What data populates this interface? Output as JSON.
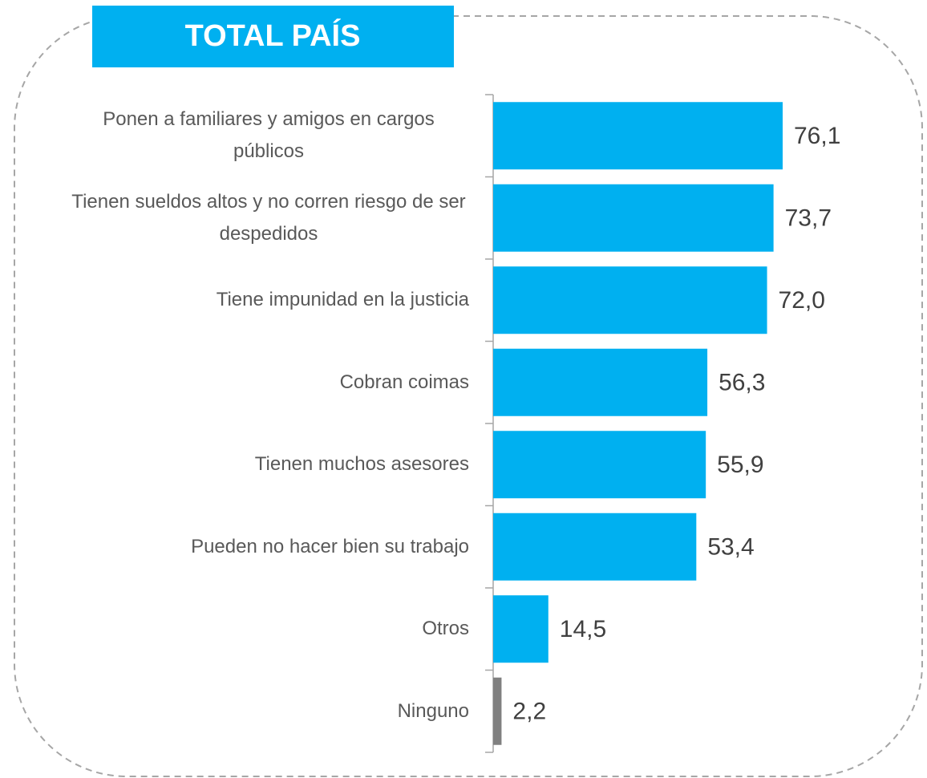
{
  "chart_data": {
    "type": "bar",
    "orientation": "horizontal",
    "title": "TOTAL PAÍS",
    "categories": [
      "Ponen a familiares y amigos en cargos públicos",
      "Tienen sueldos altos y no corren riesgo de ser despedidos",
      "Tiene impunidad en la justicia",
      "Cobran coimas",
      "Tienen muchos asesores",
      "Pueden no hacer bien su trabajo",
      "Otros",
      "Ninguno"
    ],
    "values": [
      76.1,
      73.7,
      72.0,
      56.3,
      55.9,
      53.4,
      14.5,
      2.2
    ],
    "value_labels": [
      "76,1",
      "73,7",
      "72,0",
      "56,3",
      "55,9",
      "53,4",
      "14,5",
      "2,2"
    ],
    "colors": [
      "#00b0f0",
      "#00b0f0",
      "#00b0f0",
      "#00b0f0",
      "#00b0f0",
      "#00b0f0",
      "#00b0f0",
      "#808080"
    ]
  }
}
